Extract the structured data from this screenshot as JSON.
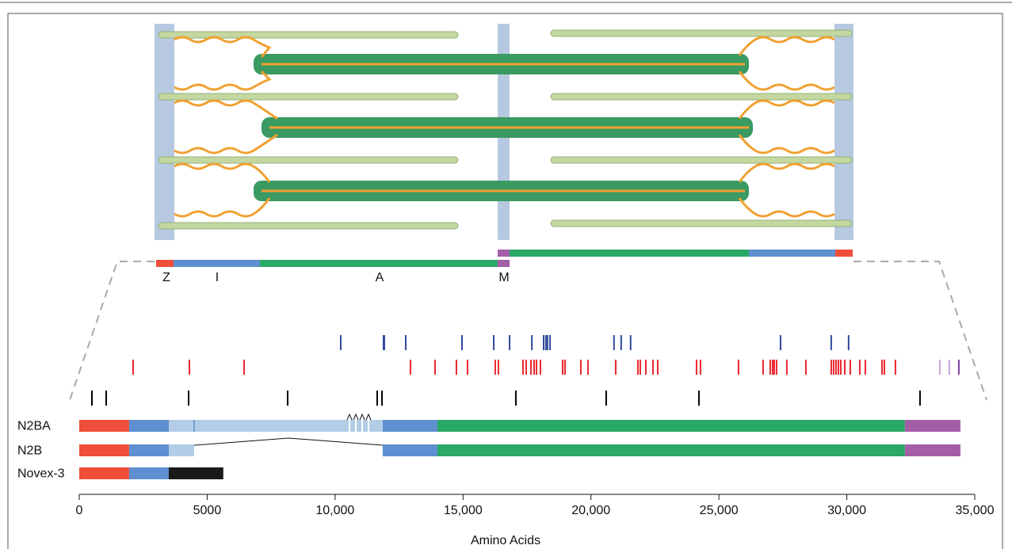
{
  "chart_data": {
    "type": "range",
    "x_label": "Amino Acids",
    "xlim": [
      0,
      35000
    ],
    "xticks": [
      0,
      5000,
      {
        "value": 10000,
        "label": "10,000"
      },
      {
        "value": 15000,
        "label": "15,000"
      },
      {
        "value": 20000,
        "label": "20,000"
      },
      {
        "value": 25000,
        "label": "25,000"
      },
      {
        "value": 30000,
        "label": "30,000"
      },
      {
        "value": 35000,
        "label": "35,000"
      }
    ],
    "band_labels": [
      "Z",
      "I",
      "A",
      "M"
    ],
    "isoforms": [
      {
        "name": "N2BA",
        "segments": [
          {
            "start": 0,
            "end": 1950,
            "color": "#ef4e3a"
          },
          {
            "start": 1950,
            "end": 3500,
            "color": "#5e8fd0"
          },
          {
            "start": 3500,
            "end": 4490,
            "color": "#b3cde6"
          },
          {
            "start": 4490,
            "end": 11860,
            "color": "#b3cde6"
          },
          {
            "start": 11860,
            "end": 14000,
            "color": "#5e8fd0"
          },
          {
            "start": 14000,
            "end": 32270,
            "color": "#2aa866"
          },
          {
            "start": 32270,
            "end": 34440,
            "color": "#a45ea8"
          }
        ]
      },
      {
        "name": "N2B",
        "segments": [
          {
            "start": 0,
            "end": 1950,
            "color": "#ef4e3a"
          },
          {
            "start": 1950,
            "end": 3500,
            "color": "#5e8fd0"
          },
          {
            "start": 3500,
            "end": 4490,
            "color": "#b3cde6"
          },
          {
            "start": 11860,
            "end": 14000,
            "color": "#5e8fd0"
          },
          {
            "start": 14000,
            "end": 32270,
            "color": "#2aa866"
          },
          {
            "start": 32270,
            "end": 34440,
            "color": "#a45ea8"
          }
        ]
      },
      {
        "name": "Novex-3",
        "segments": [
          {
            "start": 0,
            "end": 1950,
            "color": "#ef4e3a"
          },
          {
            "start": 1950,
            "end": 3500,
            "color": "#5e8fd0"
          },
          {
            "start": 3500,
            "end": 5630,
            "color": "#1a1a1a"
          }
        ]
      }
    ],
    "mutation_rows": [
      [
        {
          "color": "#2e4a9a",
          "values": [
            10220,
            11892,
            11923,
            12760,
            14960,
            16200,
            16820,
            17690,
            18150,
            18240,
            18300,
            18400,
            20900,
            21180,
            21550,
            27410,
            29390,
            30070
          ]
        }
      ],
      [
        {
          "color": "#e8262c",
          "values": [
            2106,
            4305,
            6442,
            12945,
            13905,
            14741,
            15175,
            16259,
            16383,
            17343,
            17467,
            17653,
            17777,
            17870,
            18025,
            18892,
            18985,
            19604,
            19883,
            20967,
            21834,
            21927,
            22144,
            22423,
            22609,
            24126,
            24281,
            25767,
            26727,
            27006,
            27099,
            27161,
            27254,
            27656,
            28400,
            29391,
            29484,
            29577,
            29670,
            29763,
            29918,
            30135,
            30506,
            30723,
            31374,
            31467,
            31900
          ]
        },
        {
          "color": "#c9a3d6",
          "values": [
            33634,
            34006
          ]
        },
        {
          "color": "#7b3f9e",
          "values": [
            34377
          ]
        }
      ],
      [
        {
          "color": "#000000",
          "values": [
            496,
            1053,
            4274,
            8145,
            11645,
            11831,
            17064,
            20595,
            24219,
            32860
          ]
        }
      ]
    ]
  }
}
